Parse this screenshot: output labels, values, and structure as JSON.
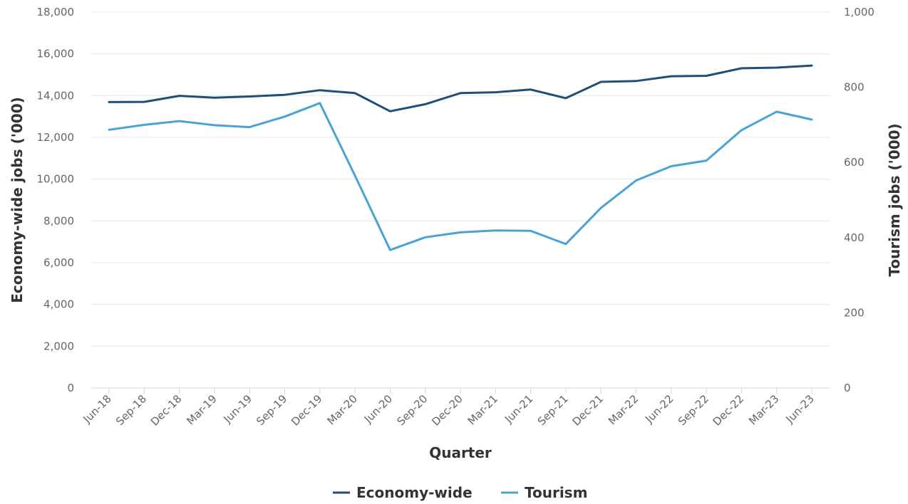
{
  "chart_data": {
    "type": "line",
    "categories": [
      "Jun-18",
      "Sep-18",
      "Dec-18",
      "Mar-19",
      "Jun-19",
      "Sep-19",
      "Dec-19",
      "Mar-20",
      "Jun-20",
      "Sep-20",
      "Dec-20",
      "Mar-21",
      "Jun-21",
      "Sep-21",
      "Dec-21",
      "Mar-22",
      "Jun-22",
      "Sep-22",
      "Dec-22",
      "Mar-23",
      "Jun-23"
    ],
    "series": [
      {
        "name": "Economy-wide",
        "axis": "left",
        "color": "#1f4e79",
        "values": [
          13690,
          13700,
          13990,
          13900,
          13960,
          14040,
          14260,
          14120,
          13250,
          13590,
          14120,
          14160,
          14290,
          13880,
          14660,
          14700,
          14930,
          14950,
          15310,
          15340,
          15440
        ]
      },
      {
        "name": "Tourism",
        "axis": "right",
        "color": "#4aa3d4",
        "values": [
          687,
          700,
          710,
          699,
          694,
          722,
          758,
          565,
          367,
          401,
          414,
          419,
          418,
          383,
          479,
          552,
          590,
          605,
          686,
          735,
          714
        ]
      }
    ],
    "title": "",
    "xlabel": "Quarter",
    "ylabel_left": "Economy-wide jobs ('000)",
    "ylabel_right": "Tourism jobs ('000)",
    "ylim_left": [
      0,
      18000
    ],
    "ylim_right": [
      0,
      1000
    ],
    "yticks_left": [
      "0",
      "2,000",
      "4,000",
      "6,000",
      "8,000",
      "10,000",
      "12,000",
      "14,000",
      "16,000",
      "18,000"
    ],
    "yticks_left_values": [
      0,
      2000,
      4000,
      6000,
      8000,
      10000,
      12000,
      14000,
      16000,
      18000
    ],
    "yticks_right": [
      "0",
      "200",
      "400",
      "600",
      "800",
      "1,000"
    ],
    "yticks_right_values": [
      0,
      200,
      400,
      600,
      800,
      1000
    ],
    "grid": true,
    "legend_position": "bottom-center"
  }
}
